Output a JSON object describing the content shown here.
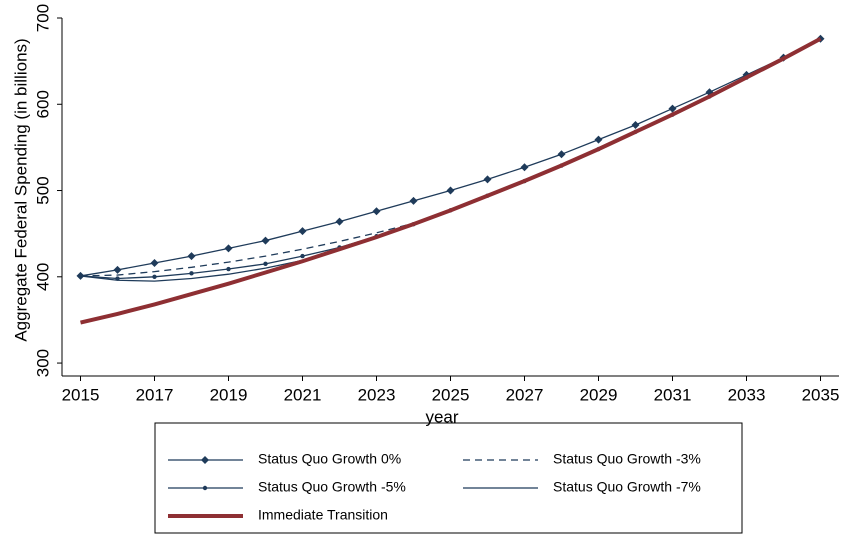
{
  "chart_data": {
    "type": "line",
    "xlabel": "year",
    "ylabel": "Aggregate Federal Spending (in billions)",
    "x": [
      2015,
      2016,
      2017,
      2018,
      2019,
      2020,
      2021,
      2022,
      2023,
      2024,
      2025,
      2026,
      2027,
      2028,
      2029,
      2030,
      2031,
      2032,
      2033,
      2034,
      2035
    ],
    "xlim": [
      2014.5,
      2035.5
    ],
    "xticks": [
      2015,
      2017,
      2019,
      2021,
      2023,
      2025,
      2027,
      2029,
      2031,
      2033,
      2035
    ],
    "ylim": [
      285,
      700
    ],
    "yticks": [
      300,
      400,
      500,
      600,
      700
    ],
    "series": [
      {
        "name": "Status Quo Growth 0%",
        "color": "#1f3b5a",
        "marker": "diamond",
        "values": [
          401,
          408,
          416,
          424,
          433,
          442,
          453,
          464,
          476,
          488,
          500,
          513,
          527,
          542,
          559,
          576,
          595,
          614,
          634,
          654,
          676
        ]
      },
      {
        "name": "Status Quo Growth -3%",
        "color": "#1f3b5a",
        "dash": true,
        "values": [
          401,
          402,
          406,
          411,
          417,
          424,
          432,
          441,
          451,
          462,
          477,
          494,
          511,
          529,
          548,
          568,
          588,
          609,
          631,
          653,
          676
        ]
      },
      {
        "name": "Status Quo Growth -5%",
        "color": "#1f3b5a",
        "marker": "dot",
        "values": [
          401,
          398,
          400,
          404,
          409,
          415,
          424,
          434,
          447,
          461,
          477,
          494,
          511,
          529,
          548,
          568,
          588,
          609,
          631,
          653,
          676
        ]
      },
      {
        "name": "Status Quo Growth -7%",
        "color": "#1f3b5a",
        "values": [
          401,
          396,
          395,
          398,
          403,
          410,
          419,
          432,
          446,
          461,
          477,
          494,
          511,
          529,
          548,
          568,
          588,
          609,
          631,
          653,
          676
        ]
      },
      {
        "name": "Immediate Transition",
        "color": "#8e2f33",
        "width": 4,
        "values": [
          347,
          357,
          368,
          380,
          392,
          405,
          418,
          432,
          446,
          461,
          477,
          494,
          511,
          529,
          548,
          568,
          588,
          609,
          631,
          653,
          676
        ]
      }
    ]
  }
}
